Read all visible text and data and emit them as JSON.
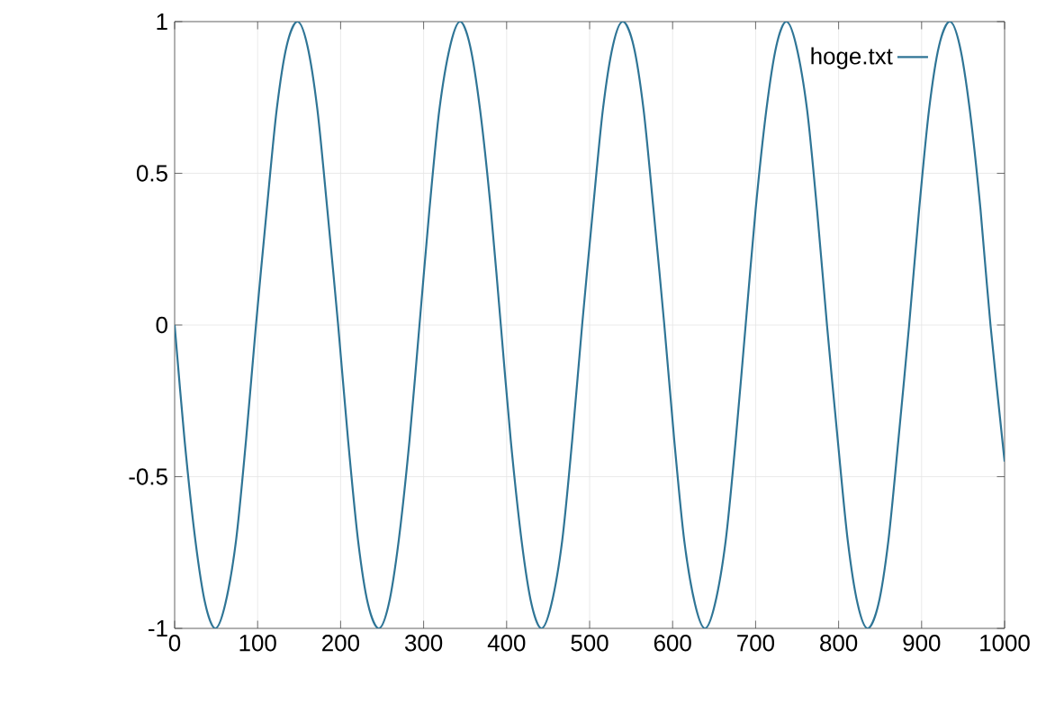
{
  "chart_data": {
    "type": "line",
    "xlim": [
      0,
      1000
    ],
    "ylim": [
      -1,
      1
    ],
    "xticks": [
      0,
      100,
      200,
      300,
      400,
      500,
      600,
      700,
      800,
      900,
      1000
    ],
    "yticks": [
      -1,
      -0.5,
      0,
      0.5,
      1
    ],
    "grid": true,
    "legend": "top right",
    "marker": "none",
    "line_style": "solid",
    "series": [
      {
        "name": "hoge.txt",
        "color": "#2f7596",
        "x": [
          0,
          12,
          25,
          37,
          49,
          61,
          74,
          86,
          98,
          111,
          123,
          135,
          148,
          160,
          172,
          184,
          197,
          209,
          221,
          233,
          246,
          258,
          270,
          283,
          295,
          307,
          319,
          332,
          344,
          356,
          368,
          381,
          393,
          405,
          418,
          430,
          442,
          454,
          467,
          479,
          491,
          504,
          516,
          528,
          540,
          553,
          565,
          577,
          590,
          602,
          614,
          627,
          639,
          651,
          664,
          676,
          688,
          700,
          713,
          725,
          737,
          749,
          762,
          774,
          786,
          799,
          811,
          823,
          835,
          848,
          860,
          872,
          885,
          897,
          909,
          921,
          934,
          946,
          958,
          971,
          983,
          1000
        ],
        "values": [
          0,
          -0.38,
          -0.71,
          -0.92,
          -1,
          -0.92,
          -0.71,
          -0.38,
          0,
          0.38,
          0.71,
          0.92,
          1,
          0.92,
          0.71,
          0.38,
          0,
          -0.38,
          -0.71,
          -0.92,
          -1,
          -0.92,
          -0.71,
          -0.38,
          0,
          0.38,
          0.71,
          0.92,
          1,
          0.92,
          0.71,
          0.38,
          0,
          -0.38,
          -0.71,
          -0.92,
          -1,
          -0.92,
          -0.71,
          -0.38,
          0,
          0.38,
          0.71,
          0.92,
          1,
          0.92,
          0.71,
          0.38,
          0,
          -0.38,
          -0.71,
          -0.92,
          -1,
          -0.92,
          -0.71,
          -0.38,
          0,
          0.38,
          0.71,
          0.92,
          1,
          0.92,
          0.71,
          0.38,
          0,
          -0.38,
          -0.71,
          -0.92,
          -1,
          -0.92,
          -0.71,
          -0.38,
          0,
          0.38,
          0.71,
          0.92,
          1,
          0.92,
          0.71,
          0.38,
          0,
          -0.45
        ]
      }
    ]
  }
}
